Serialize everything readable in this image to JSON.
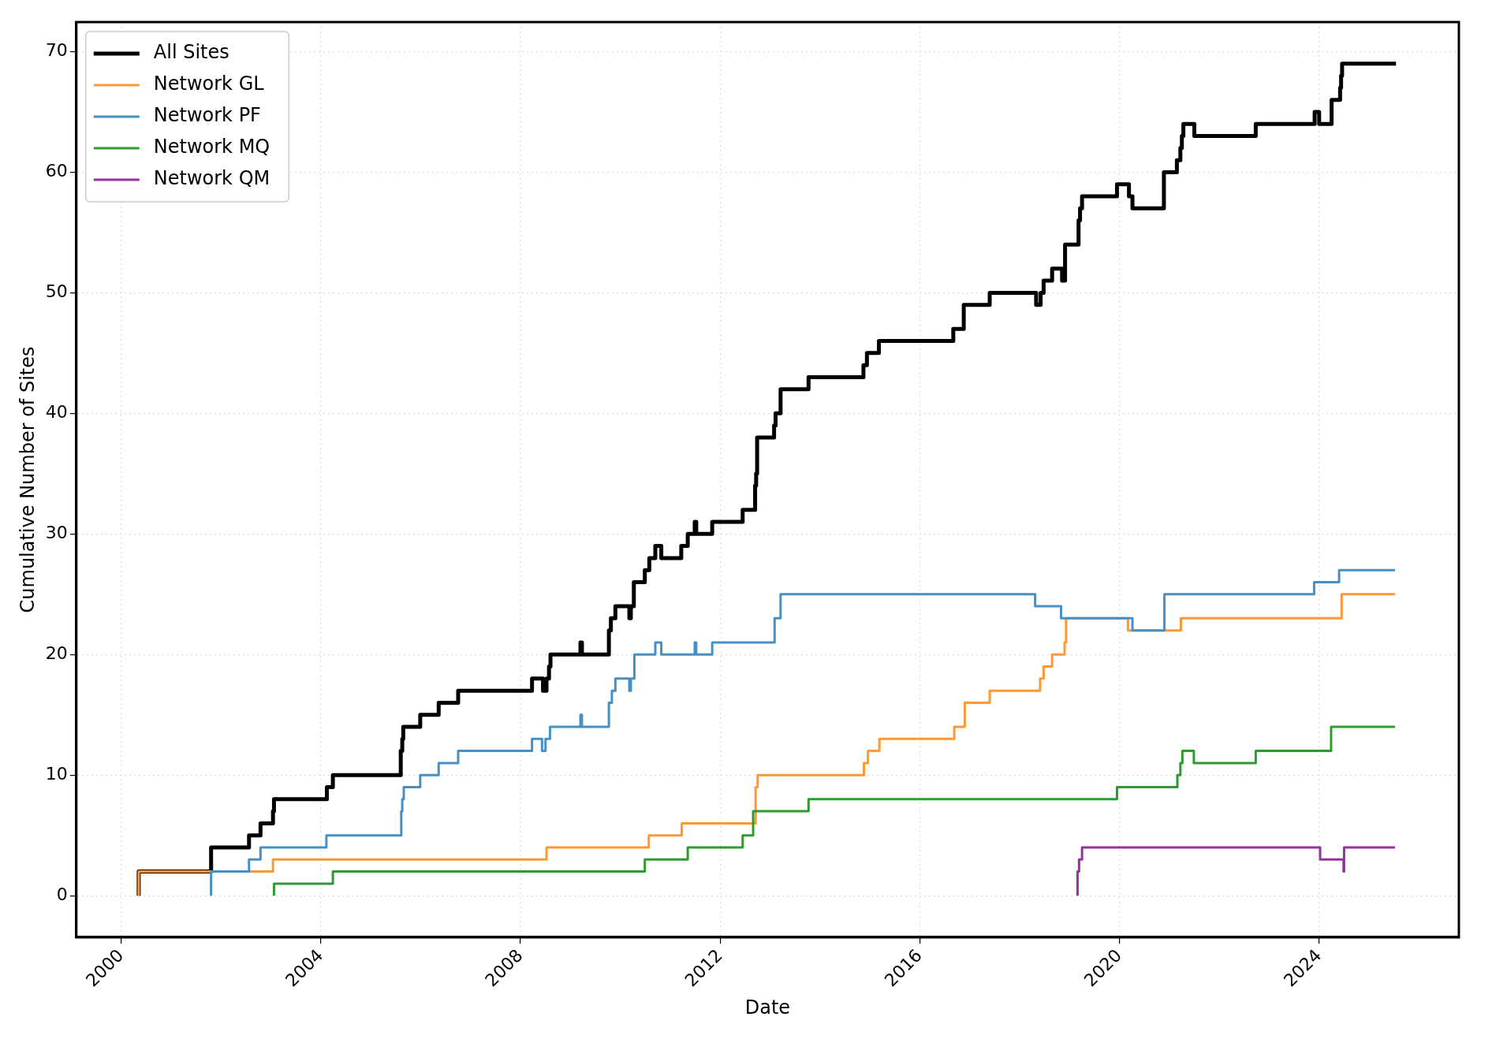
{
  "chart_data": {
    "type": "step",
    "xlabel": "Date",
    "ylabel": "Cumulative Number of Sites",
    "xlim": [
      1999.1,
      2026.8
    ],
    "xticks": [
      2000,
      2004,
      2008,
      2012,
      2016,
      2020,
      2024
    ],
    "ylim": [
      -3.45,
      72.45
    ],
    "yticks": [
      0,
      10,
      20,
      30,
      40,
      50,
      60,
      70
    ],
    "grid": true,
    "legend": "top left",
    "series": [
      {
        "name": "All Sites",
        "color": "#000000",
        "x": [
          2000.35,
          2000.35,
          2001.8,
          2002.56,
          2002.79,
          2003.04,
          2003.06,
          2004.12,
          2004.24,
          2005.6,
          2005.63,
          2005.65,
          2005.99,
          2006.36,
          2006.75,
          2008.23,
          2008.45,
          2008.52,
          2008.57,
          2008.6,
          2009.2,
          2009.23,
          2009.77,
          2009.81,
          2009.9,
          2010.18,
          2010.21,
          2010.27,
          2010.49,
          2010.58,
          2010.7,
          2010.82,
          2011.22,
          2011.35,
          2011.49,
          2011.52,
          2011.84,
          2012.45,
          2012.7,
          2012.72,
          2012.74,
          2013.08,
          2013.11,
          2013.21,
          2013.77,
          2014.87,
          2014.94,
          2015.18,
          2016.67,
          2016.88,
          2017.4,
          2018.33,
          2018.42,
          2018.48,
          2018.65,
          2018.85,
          2018.91,
          2019.18,
          2019.21,
          2019.25,
          2019.95,
          2020.19,
          2020.26,
          2020.89,
          2021.15,
          2021.22,
          2021.25,
          2021.28,
          2021.5,
          2022.73,
          2023.91,
          2024.0,
          2024.25,
          2024.42,
          2024.44,
          2024.46,
          2025.54
        ],
        "values": [
          0,
          2,
          4,
          5,
          6,
          7,
          8,
          9,
          10,
          12,
          13,
          14,
          15,
          16,
          17,
          18,
          17,
          18,
          19,
          20,
          21,
          20,
          22,
          23,
          24,
          23,
          24,
          26,
          27,
          28,
          29,
          28,
          29,
          30,
          31,
          30,
          31,
          32,
          34,
          35,
          38,
          39,
          40,
          42,
          43,
          44,
          45,
          46,
          47,
          49,
          50,
          49,
          50,
          51,
          52,
          51,
          54,
          56,
          57,
          58,
          59,
          58,
          57,
          60,
          61,
          62,
          63,
          64,
          63,
          64,
          65,
          64,
          66,
          67,
          68,
          69,
          69
        ]
      },
      {
        "name": "Network GL",
        "color": "#ff9933",
        "x": [
          2000.35,
          2000.35,
          2003.04,
          2008.52,
          2010.57,
          2011.23,
          2012.71,
          2012.75,
          2014.88,
          2014.96,
          2015.19,
          2016.69,
          2016.9,
          2017.4,
          2018.41,
          2018.48,
          2018.65,
          2018.9,
          2018.93,
          2020.17,
          2021.23,
          2024.45,
          2025.52
        ],
        "values": [
          0,
          2,
          3,
          4,
          5,
          6,
          9,
          10,
          11,
          12,
          13,
          14,
          16,
          17,
          18,
          19,
          20,
          21,
          23,
          22,
          23,
          25,
          25
        ]
      },
      {
        "name": "Network PF",
        "color": "#4690c6",
        "x": [
          2001.8,
          2001.8,
          2002.56,
          2002.79,
          2004.11,
          2005.61,
          2005.63,
          2005.66,
          2005.99,
          2006.36,
          2006.75,
          2008.23,
          2008.43,
          2008.5,
          2008.59,
          2009.2,
          2009.23,
          2009.77,
          2009.83,
          2009.9,
          2010.18,
          2010.21,
          2010.28,
          2010.7,
          2010.82,
          2011.49,
          2011.52,
          2011.84,
          2013.09,
          2013.21,
          2018.31,
          2018.83,
          2020.26,
          2020.9,
          2023.9,
          2024.4,
          2025.52
        ],
        "values": [
          0,
          2,
          3,
          4,
          5,
          7,
          8,
          9,
          10,
          11,
          12,
          13,
          12,
          13,
          14,
          15,
          14,
          16,
          17,
          18,
          17,
          18,
          20,
          21,
          20,
          21,
          20,
          21,
          23,
          25,
          24,
          23,
          22,
          25,
          26,
          27,
          27
        ]
      },
      {
        "name": "Network MQ",
        "color": "#2e9b2e",
        "x": [
          2003.06,
          2003.06,
          2004.24,
          2010.49,
          2011.35,
          2012.45,
          2012.66,
          2013.77,
          2019.95,
          2021.16,
          2021.22,
          2021.26,
          2021.49,
          2022.73,
          2024.24,
          2025.52
        ],
        "values": [
          0,
          1,
          2,
          3,
          4,
          5,
          7,
          8,
          9,
          10,
          11,
          12,
          11,
          12,
          14,
          14
        ]
      },
      {
        "name": "Network QM",
        "color": "#9433a0",
        "x": [
          2019.16,
          2019.16,
          2019.19,
          2019.25,
          2024.02,
          2024.49,
          2024.5,
          2025.52
        ],
        "values": [
          0,
          2,
          3,
          4,
          3,
          2,
          4,
          4
        ]
      }
    ]
  }
}
